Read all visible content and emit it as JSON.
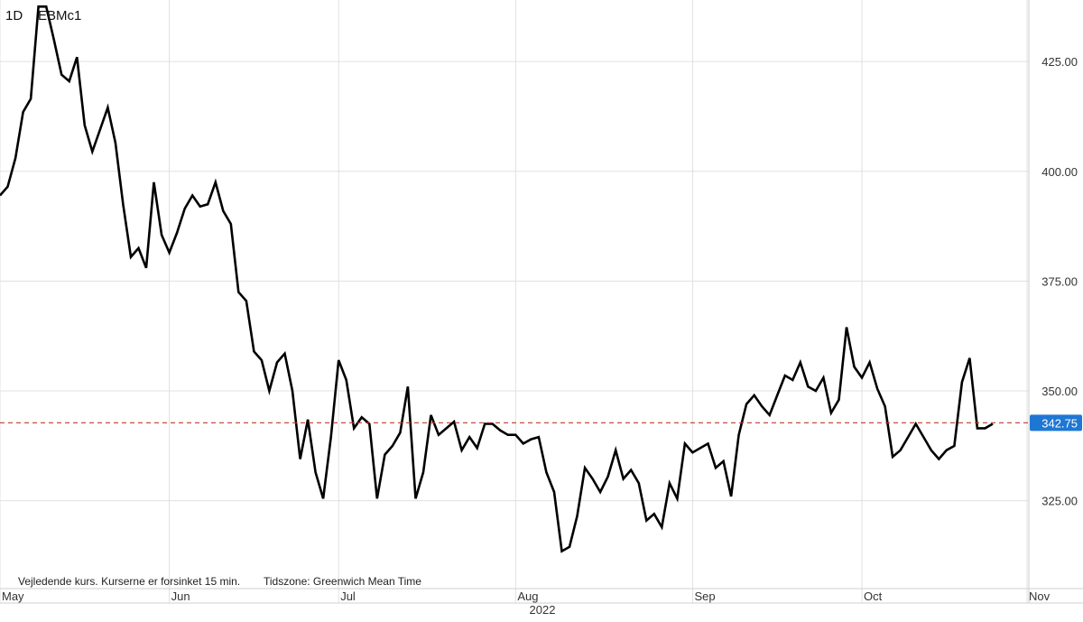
{
  "header": {
    "interval": "1D",
    "symbol": "EBMc1"
  },
  "footer": {
    "disclaimer": "Vejledende kurs. Kurserne er forsinket 15 min.",
    "timezone": "Tidszone: Greenwich Mean Time",
    "year": "2022"
  },
  "colors": {
    "line": "#000000",
    "grid": "#e0e0e0",
    "last_price_line": "#c0392b",
    "last_price_badge_bg": "#1f77d4",
    "last_price_badge_text": "#ffffff",
    "axis_text": "#333333"
  },
  "chart_data": {
    "type": "line",
    "title": "",
    "xlabel": "",
    "ylabel": "",
    "ylim": [
      305,
      439
    ],
    "grid": true,
    "y_ticks": [
      325,
      350,
      375,
      400,
      425
    ],
    "y_tick_labels": [
      "325.00",
      "350.00",
      "375.00",
      "400.00",
      "425.00"
    ],
    "x_ticks": [
      "May",
      "Jun",
      "Jul",
      "Aug",
      "Sep",
      "Oct",
      "Nov"
    ],
    "last_price": 342.75,
    "last_price_label": "342.75",
    "series": [
      {
        "values": [
          394.5,
          396.5,
          403,
          413.5,
          416.5,
          437.5,
          437.5,
          430,
          422,
          420.5,
          426,
          410.5,
          404.5,
          409.5,
          414.5,
          406.5,
          392.5,
          380.5,
          382.5,
          378,
          397.5,
          385.5,
          381.5,
          386,
          391.5,
          394.5,
          392,
          392.5,
          397.5,
          391,
          388,
          372.5,
          370.5,
          359,
          357,
          350,
          356.5,
          358.5,
          350,
          334.5,
          343.5,
          331.5,
          325.5,
          339.5,
          357,
          352.5,
          341.5,
          344,
          342.5,
          325.5,
          335.5,
          337.5,
          340.5,
          351,
          325.5,
          331.5,
          344.5,
          340,
          341.5,
          343,
          336.5,
          339.5,
          337,
          342.5,
          342.5,
          341,
          340,
          340,
          338,
          339,
          339.5,
          331.5,
          327,
          313.5,
          314.5,
          321.5,
          332.5,
          330,
          327,
          330.5,
          336.5,
          330,
          332,
          329,
          320.5,
          322,
          319,
          329,
          325.5,
          338,
          336,
          337,
          338,
          332.5,
          334,
          326,
          340,
          347,
          349,
          346.5,
          344.5,
          349,
          353.5,
          352.5,
          356.5,
          351,
          350,
          353,
          345,
          348,
          364.5,
          355.5,
          353,
          356.5,
          350.5,
          346.5,
          335,
          336.5,
          339.5,
          342.5,
          339.5,
          336.5,
          334.5,
          336.5,
          337.5,
          352,
          357.5,
          341.5,
          341.5,
          342.5
        ]
      }
    ]
  }
}
